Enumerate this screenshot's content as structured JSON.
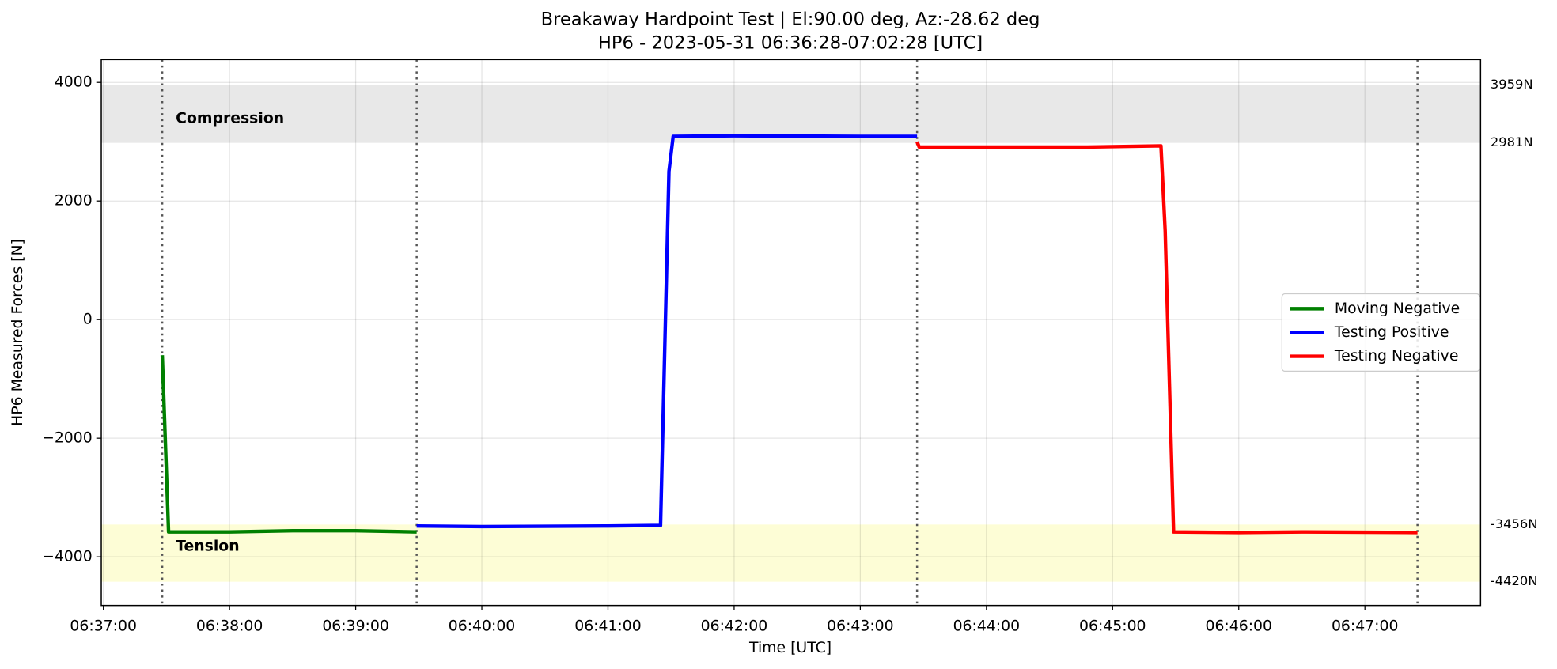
{
  "chart_data": {
    "type": "line",
    "title": "Breakaway Hardpoint Test | El:90.00 deg, Az:-28.62 deg",
    "subtitle": "HP6 - 2023-05-31 06:36:28-07:02:28 [UTC]",
    "x_label": "Time [UTC]",
    "y_label": "HP6 Measured Forces [N]",
    "xlim": [
      "06:36:59",
      "06:47:55"
    ],
    "xticks": [
      "06:37:00",
      "06:38:00",
      "06:39:00",
      "06:40:00",
      "06:41:00",
      "06:42:00",
      "06:43:00",
      "06:44:00",
      "06:45:00",
      "06:46:00",
      "06:47:00"
    ],
    "ylim": [
      -4820,
      4385
    ],
    "yticks": [
      {
        "value": -4000,
        "label": "−4000"
      },
      {
        "value": -2000,
        "label": "−2000"
      },
      0,
      2000,
      4000
    ],
    "grid": true,
    "legend": "right",
    "vlines": [
      "06:37:28",
      "06:39:29",
      "06:43:27",
      "06:47:25"
    ],
    "bands": [
      {
        "name": "Compression",
        "color": "#e8e8e8",
        "from": {
          "value": 2981,
          "label": "2981N"
        },
        "to": {
          "value": 3959,
          "label": "3959N"
        }
      },
      {
        "name": "Tension",
        "color": "#fdfdd6",
        "from": {
          "value": -4420,
          "label": "-4420N"
        },
        "to": {
          "value": -3456,
          "label": "-3456N"
        }
      }
    ],
    "series": [
      {
        "name": "Moving Negative",
        "color": "#008000",
        "x": [
          "06:37:28",
          "06:37:31",
          "06:38:00",
          "06:38:30",
          "06:39:00",
          "06:39:29"
        ],
        "values": [
          -600,
          -3580,
          -3580,
          -3560,
          -3560,
          -3580
        ]
      },
      {
        "name": "Testing Positive",
        "color": "#0000ff",
        "x": [
          "06:39:29",
          "06:40:00",
          "06:41:00",
          "06:41:25",
          "06:41:29",
          "06:41:31",
          "06:42:00",
          "06:43:00",
          "06:43:27"
        ],
        "values": [
          -3480,
          -3490,
          -3480,
          -3470,
          2500,
          3090,
          3100,
          3090,
          3090
        ]
      },
      {
        "name": "Testing Negative",
        "color": "#ff0000",
        "x": [
          "06:43:27",
          "06:43:28",
          "06:44:00",
          "06:44:48",
          "06:45:23",
          "06:45:25",
          "06:45:29",
          "06:46:00",
          "06:46:30",
          "06:47:25"
        ],
        "values": [
          3000,
          2910,
          2910,
          2910,
          2930,
          1500,
          -3580,
          -3590,
          -3580,
          -3590
        ]
      }
    ]
  }
}
